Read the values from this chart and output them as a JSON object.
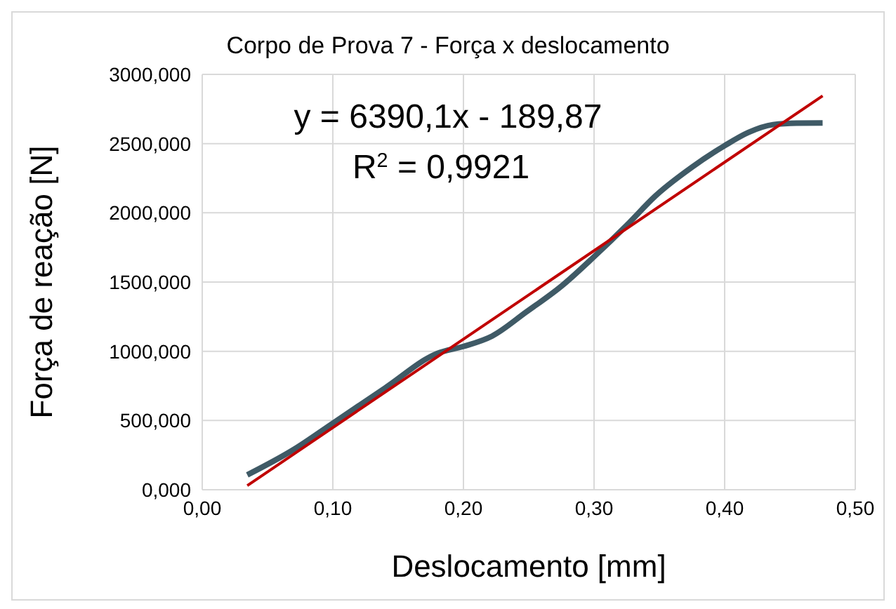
{
  "chart_data": {
    "type": "line",
    "title": "Corpo de Prova  7 - Força x deslocamento",
    "xlabel": "Deslocamento [mm]",
    "ylabel": "Força de reação [N]",
    "annotations": [
      "y = 6390,1x - 189,87",
      "R$^{2}$ = 0,9921"
    ],
    "series": [
      {
        "color": "#3f5a66",
        "x": [
          0.0345,
          0.07,
          0.1,
          0.14,
          0.18,
          0.2,
          0.222,
          0.248,
          0.275,
          0.3,
          0.325,
          0.347,
          0.375,
          0.4,
          0.418,
          0.437,
          0.455,
          0.475
        ],
        "values": [
          107,
          290,
          480,
          735,
          985,
          1035,
          1110,
          1283,
          1470,
          1683,
          1910,
          2122,
          2330,
          2485,
          2580,
          2637,
          2648,
          2649
        ]
      },
      {
        "type": "line",
        "color": "#c00000",
        "x": [
          0.0345,
          0.475
        ],
        "values": [
          30,
          2845
        ]
      }
    ],
    "xlim": [
      0,
      0.5
    ],
    "xticks": [
      {
        "value": 0,
        "label": "0,00"
      },
      {
        "value": 0.1,
        "label": "0,10"
      },
      {
        "value": 0.2,
        "label": "0,20"
      },
      {
        "value": 0.3,
        "label": "0,30"
      },
      {
        "value": 0.4,
        "label": "0,40"
      },
      {
        "value": 0.5,
        "label": "0,50"
      }
    ],
    "ylim": [
      0,
      3000
    ],
    "yticks": [
      {
        "value": 0,
        "label": "0,000"
      },
      {
        "value": 500,
        "label": "500,000"
      },
      {
        "value": 1000,
        "label": "1000,000"
      },
      {
        "value": 1500,
        "label": "1500,000"
      },
      {
        "value": 2000,
        "label": "2000,000"
      },
      {
        "value": 2500,
        "label": "2500,000"
      },
      {
        "value": 3000,
        "label": "3000,000"
      }
    ],
    "grid": true,
    "marker": "none"
  }
}
